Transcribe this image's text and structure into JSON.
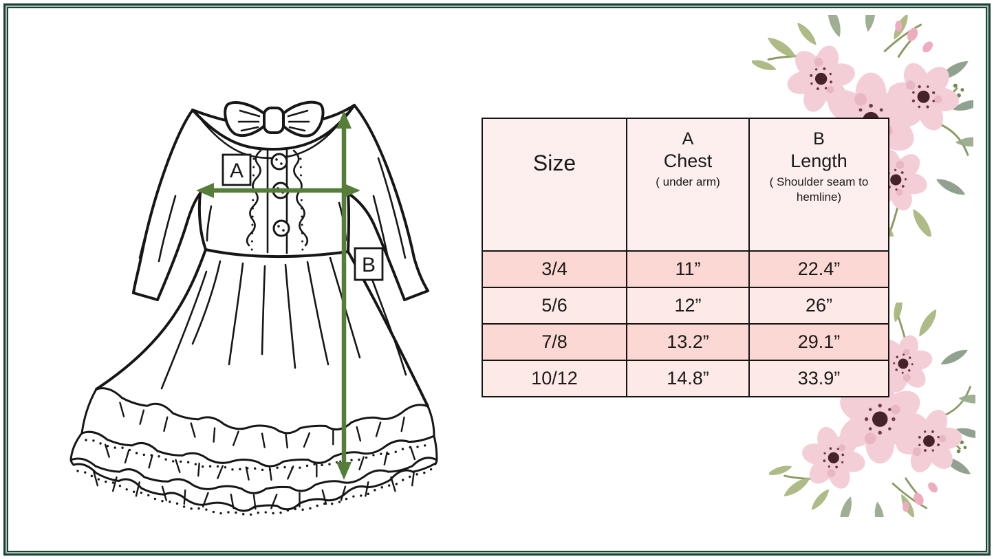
{
  "diagram": {
    "label_a": "A",
    "label_b": "B"
  },
  "table": {
    "columns": [
      {
        "letter": "",
        "title": "Size",
        "sub": ""
      },
      {
        "letter": "A",
        "title": "Chest",
        "sub": "( under arm)"
      },
      {
        "letter": "B",
        "title": "Length",
        "sub": "( Shoulder seam to hemline)"
      }
    ],
    "rows": [
      {
        "size": "3/4",
        "chest": "11”",
        "length": "22.4”",
        "shade": "dark"
      },
      {
        "size": "5/6",
        "chest": "12”",
        "length": "26”",
        "shade": "light"
      },
      {
        "size": "7/8",
        "chest": "13.2”",
        "length": "29.1”",
        "shade": "dark"
      },
      {
        "size": "10/12",
        "chest": "14.8”",
        "length": "33.9”",
        "shade": "light"
      }
    ]
  },
  "colors": {
    "frame_green": "#1d4136",
    "frame_gap": "#a3bfae",
    "table_border": "#141414",
    "header_bg": "#fdefed",
    "row_dark": "#fbd8d3",
    "row_light": "#fdeae6",
    "ink": "#1a1a1a",
    "arrow_green": "#567d3a",
    "petal_pink": "#f3ced6",
    "petal_blotch": "#e9b7c4",
    "flower_center": "#46222b",
    "speckle": "#6e3a48",
    "bud_pink": "#edadbf",
    "leaf_olive": "#aab780",
    "leaf_sage": "#9aab8e",
    "leaf_gray": "#8b9c8a",
    "stem_green": "#8a9b63",
    "berry_green": "#6d8a52"
  }
}
